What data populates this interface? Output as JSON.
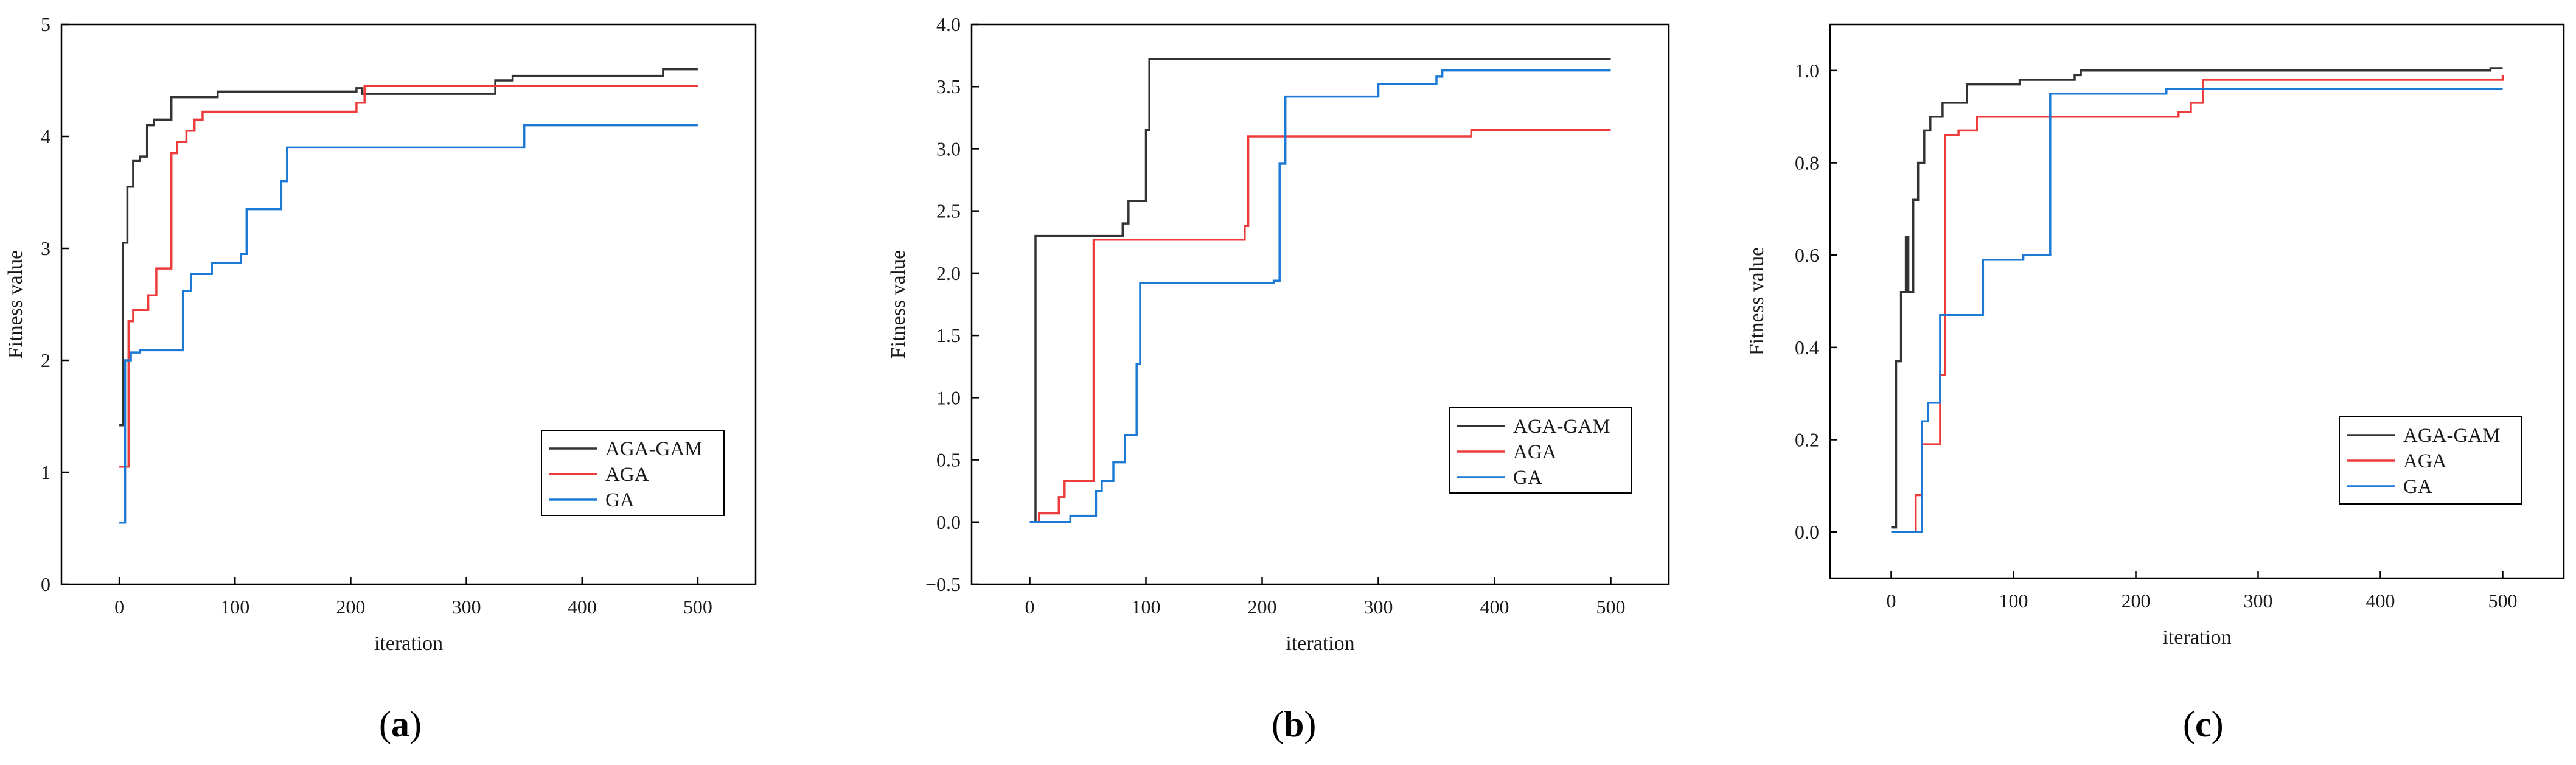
{
  "colors": {
    "AGA-GAM": "#333333",
    "AGA": "#ee3b3b",
    "GA": "#1c7ad6"
  },
  "chart_data": [
    {
      "type": "line",
      "panel_label": "(a)",
      "panel_letter": "a",
      "xlabel": "iteration",
      "ylabel": "Fitness value",
      "xlim": [
        -50,
        550
      ],
      "ylim": [
        0,
        5
      ],
      "xticks": [
        0,
        100,
        200,
        300,
        400,
        500
      ],
      "yticks": [
        0,
        1,
        2,
        3,
        4,
        5
      ],
      "ytick_labels": [
        "0",
        "1",
        "2",
        "3",
        "4",
        "5"
      ],
      "legend_position": "bottom-right",
      "series": [
        {
          "name": "AGA-GAM",
          "step": true,
          "points": [
            [
              0,
              1.42
            ],
            [
              3,
              1.42
            ],
            [
              3,
              3.05
            ],
            [
              7,
              3.05
            ],
            [
              7,
              3.55
            ],
            [
              12,
              3.55
            ],
            [
              12,
              3.78
            ],
            [
              18,
              3.78
            ],
            [
              18,
              3.82
            ],
            [
              24,
              3.82
            ],
            [
              24,
              4.1
            ],
            [
              30,
              4.1
            ],
            [
              30,
              4.15
            ],
            [
              45,
              4.15
            ],
            [
              45,
              4.35
            ],
            [
              85,
              4.35
            ],
            [
              85,
              4.4
            ],
            [
              205,
              4.4
            ],
            [
              205,
              4.43
            ],
            [
              210,
              4.43
            ],
            [
              210,
              4.38
            ],
            [
              325,
              4.38
            ],
            [
              325,
              4.5
            ],
            [
              340,
              4.5
            ],
            [
              340,
              4.54
            ],
            [
              470,
              4.54
            ],
            [
              470,
              4.6
            ],
            [
              500,
              4.6
            ]
          ]
        },
        {
          "name": "AGA",
          "step": true,
          "points": [
            [
              0,
              1.05
            ],
            [
              8,
              1.05
            ],
            [
              8,
              2.35
            ],
            [
              12,
              2.35
            ],
            [
              12,
              2.45
            ],
            [
              25,
              2.45
            ],
            [
              25,
              2.58
            ],
            [
              32,
              2.58
            ],
            [
              32,
              2.82
            ],
            [
              45,
              2.82
            ],
            [
              45,
              3.85
            ],
            [
              50,
              3.85
            ],
            [
              50,
              3.95
            ],
            [
              58,
              3.95
            ],
            [
              58,
              4.05
            ],
            [
              65,
              4.05
            ],
            [
              65,
              4.15
            ],
            [
              72,
              4.15
            ],
            [
              72,
              4.22
            ],
            [
              205,
              4.22
            ],
            [
              205,
              4.3
            ],
            [
              212,
              4.3
            ],
            [
              212,
              4.45
            ],
            [
              500,
              4.45
            ]
          ]
        },
        {
          "name": "GA",
          "step": true,
          "points": [
            [
              0,
              0.55
            ],
            [
              5,
              0.55
            ],
            [
              5,
              2.0
            ],
            [
              10,
              2.0
            ],
            [
              10,
              2.07
            ],
            [
              18,
              2.07
            ],
            [
              18,
              2.09
            ],
            [
              55,
              2.09
            ],
            [
              55,
              2.62
            ],
            [
              62,
              2.62
            ],
            [
              62,
              2.77
            ],
            [
              80,
              2.77
            ],
            [
              80,
              2.87
            ],
            [
              105,
              2.87
            ],
            [
              105,
              2.95
            ],
            [
              110,
              2.95
            ],
            [
              110,
              3.35
            ],
            [
              140,
              3.35
            ],
            [
              140,
              3.6
            ],
            [
              145,
              3.6
            ],
            [
              145,
              3.9
            ],
            [
              350,
              3.9
            ],
            [
              350,
              4.1
            ],
            [
              500,
              4.1
            ]
          ]
        }
      ]
    },
    {
      "type": "line",
      "panel_label": "(b)",
      "panel_letter": "b",
      "xlabel": "iteration",
      "ylabel": "Fitness value",
      "xlim": [
        -50,
        550
      ],
      "ylim": [
        -0.5,
        4.0
      ],
      "xticks": [
        0,
        100,
        200,
        300,
        400,
        500
      ],
      "yticks": [
        -0.5,
        0.0,
        0.5,
        1.0,
        1.5,
        2.0,
        2.5,
        3.0,
        3.5,
        4.0
      ],
      "ytick_labels": [
        "−0.5",
        "0.0",
        "0.5",
        "1.0",
        "1.5",
        "2.0",
        "2.5",
        "3.0",
        "3.5",
        "4.0"
      ],
      "legend_position": "bottom-right",
      "series": [
        {
          "name": "AGA-GAM",
          "step": true,
          "points": [
            [
              0,
              0.0
            ],
            [
              5,
              0.0
            ],
            [
              5,
              2.3
            ],
            [
              80,
              2.3
            ],
            [
              80,
              2.4
            ],
            [
              85,
              2.4
            ],
            [
              85,
              2.58
            ],
            [
              100,
              2.58
            ],
            [
              100,
              3.15
            ],
            [
              103,
              3.15
            ],
            [
              103,
              3.72
            ],
            [
              500,
              3.72
            ]
          ]
        },
        {
          "name": "AGA",
          "step": true,
          "points": [
            [
              0,
              0.0
            ],
            [
              8,
              0.0
            ],
            [
              8,
              0.07
            ],
            [
              25,
              0.07
            ],
            [
              25,
              0.2
            ],
            [
              30,
              0.2
            ],
            [
              30,
              0.33
            ],
            [
              55,
              0.33
            ],
            [
              55,
              2.27
            ],
            [
              185,
              2.27
            ],
            [
              185,
              2.38
            ],
            [
              188,
              2.38
            ],
            [
              188,
              3.1
            ],
            [
              380,
              3.1
            ],
            [
              380,
              3.15
            ],
            [
              500,
              3.15
            ]
          ]
        },
        {
          "name": "GA",
          "step": true,
          "points": [
            [
              0,
              0.0
            ],
            [
              35,
              0.0
            ],
            [
              35,
              0.05
            ],
            [
              57,
              0.05
            ],
            [
              57,
              0.25
            ],
            [
              62,
              0.25
            ],
            [
              62,
              0.33
            ],
            [
              72,
              0.33
            ],
            [
              72,
              0.48
            ],
            [
              82,
              0.48
            ],
            [
              82,
              0.7
            ],
            [
              92,
              0.7
            ],
            [
              92,
              1.27
            ],
            [
              95,
              1.27
            ],
            [
              95,
              1.92
            ],
            [
              210,
              1.92
            ],
            [
              210,
              1.94
            ],
            [
              215,
              1.94
            ],
            [
              215,
              2.88
            ],
            [
              220,
              2.88
            ],
            [
              220,
              3.42
            ],
            [
              300,
              3.42
            ],
            [
              300,
              3.52
            ],
            [
              350,
              3.52
            ],
            [
              350,
              3.58
            ],
            [
              355,
              3.58
            ],
            [
              355,
              3.63
            ],
            [
              500,
              3.63
            ]
          ]
        }
      ]
    },
    {
      "type": "line",
      "panel_label": "(c)",
      "panel_letter": "c",
      "xlabel": "iteration",
      "ylabel": "Fitness value",
      "xlim": [
        -50,
        550
      ],
      "ylim": [
        -0.1,
        1.1
      ],
      "xticks": [
        0,
        100,
        200,
        300,
        400,
        500
      ],
      "yticks": [
        0.0,
        0.2,
        0.4,
        0.6,
        0.8,
        1.0
      ],
      "ytick_labels": [
        "0.0",
        "0.2",
        "0.4",
        "0.6",
        "0.8",
        "1.0"
      ],
      "legend_position": "bottom-right",
      "series": [
        {
          "name": "AGA-GAM",
          "step": true,
          "points": [
            [
              0,
              0.01
            ],
            [
              4,
              0.01
            ],
            [
              4,
              0.37
            ],
            [
              8,
              0.37
            ],
            [
              8,
              0.52
            ],
            [
              12,
              0.52
            ],
            [
              12,
              0.64
            ],
            [
              14,
              0.64
            ],
            [
              14,
              0.52
            ],
            [
              18,
              0.52
            ],
            [
              18,
              0.72
            ],
            [
              22,
              0.72
            ],
            [
              22,
              0.8
            ],
            [
              27,
              0.8
            ],
            [
              27,
              0.87
            ],
            [
              32,
              0.87
            ],
            [
              32,
              0.9
            ],
            [
              42,
              0.9
            ],
            [
              42,
              0.93
            ],
            [
              62,
              0.93
            ],
            [
              62,
              0.97
            ],
            [
              105,
              0.97
            ],
            [
              105,
              0.98
            ],
            [
              150,
              0.98
            ],
            [
              150,
              0.99
            ],
            [
              155,
              0.99
            ],
            [
              155,
              1.0
            ],
            [
              300,
              1.0
            ],
            [
              300,
              1.0
            ],
            [
              490,
              1.0
            ],
            [
              490,
              1.005
            ],
            [
              500,
              1.005
            ]
          ]
        },
        {
          "name": "AGA",
          "step": true,
          "points": [
            [
              0,
              0.0
            ],
            [
              20,
              0.0
            ],
            [
              20,
              0.08
            ],
            [
              25,
              0.08
            ],
            [
              25,
              0.19
            ],
            [
              40,
              0.19
            ],
            [
              40,
              0.34
            ],
            [
              44,
              0.34
            ],
            [
              44,
              0.86
            ],
            [
              55,
              0.86
            ],
            [
              55,
              0.87
            ],
            [
              70,
              0.87
            ],
            [
              70,
              0.9
            ],
            [
              235,
              0.9
            ],
            [
              235,
              0.91
            ],
            [
              245,
              0.91
            ],
            [
              245,
              0.93
            ],
            [
              255,
              0.93
            ],
            [
              255,
              0.98
            ],
            [
              500,
              0.98
            ],
            [
              500,
              0.99
            ]
          ]
        },
        {
          "name": "GA",
          "step": true,
          "points": [
            [
              0,
              0.0
            ],
            [
              25,
              0.0
            ],
            [
              25,
              0.24
            ],
            [
              30,
              0.24
            ],
            [
              30,
              0.28
            ],
            [
              40,
              0.28
            ],
            [
              40,
              0.47
            ],
            [
              75,
              0.47
            ],
            [
              75,
              0.59
            ],
            [
              108,
              0.59
            ],
            [
              108,
              0.6
            ],
            [
              130,
              0.6
            ],
            [
              130,
              0.95
            ],
            [
              225,
              0.95
            ],
            [
              225,
              0.96
            ],
            [
              500,
              0.96
            ]
          ]
        }
      ]
    }
  ]
}
